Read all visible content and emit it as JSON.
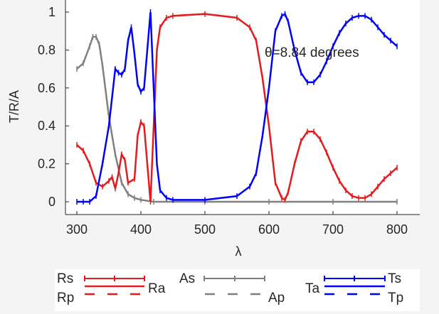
{
  "chart_data": {
    "type": "line",
    "xlabel": "λ",
    "ylabel": "T/R/A",
    "xlim": [
      275,
      830
    ],
    "ylim": [
      -0.06,
      1.06
    ],
    "xticks": [
      300,
      400,
      500,
      600,
      700,
      800
    ],
    "yticks": [
      0,
      0.2,
      0.4,
      0.6,
      0.8,
      1
    ],
    "ytick_labels": [
      "0",
      "0.2",
      "0.4",
      "0.6",
      "0.8",
      "1"
    ],
    "annotation": "θ=8.84 degrees",
    "grid": false,
    "legend_placement": "below",
    "colors": {
      "R": "#e41a1c",
      "A": "#808080",
      "T": "#0000ff"
    },
    "legend": {
      "Rs": "Rs",
      "Rp": "Rp",
      "Ra": "Ra",
      "As": "As",
      "Ap": "Ap",
      "Ts": "Ts",
      "Ta": "Ta",
      "Tp": "Tp"
    },
    "series": [
      {
        "name": "T",
        "color": "#0000ff",
        "x": [
          300,
          310,
          320,
          330,
          340,
          350,
          355,
          360,
          365,
          370,
          375,
          380,
          385,
          390,
          395,
          400,
          405,
          410,
          415,
          420,
          425,
          430,
          440,
          450,
          500,
          550,
          570,
          580,
          590,
          600,
          610,
          620,
          625,
          630,
          640,
          650,
          660,
          670,
          680,
          690,
          700,
          710,
          720,
          730,
          740,
          750,
          760,
          770,
          780,
          790,
          800
        ],
        "y": [
          0,
          0,
          0,
          0.03,
          0.2,
          0.4,
          0.55,
          0.7,
          0.68,
          0.67,
          0.7,
          0.85,
          0.92,
          0.78,
          0.62,
          0.58,
          0.6,
          0.8,
          1.0,
          0.6,
          0.2,
          0.06,
          0.02,
          0.01,
          0.01,
          0.03,
          0.08,
          0.15,
          0.35,
          0.6,
          0.9,
          0.98,
          0.99,
          0.95,
          0.8,
          0.68,
          0.63,
          0.63,
          0.67,
          0.74,
          0.82,
          0.89,
          0.94,
          0.97,
          0.98,
          0.98,
          0.96,
          0.92,
          0.88,
          0.85,
          0.82
        ]
      },
      {
        "name": "R",
        "color": "#e41a1c",
        "x": [
          300,
          310,
          320,
          330,
          340,
          350,
          355,
          360,
          365,
          370,
          375,
          380,
          390,
          395,
          400,
          405,
          410,
          415,
          420,
          425,
          430,
          440,
          450,
          500,
          550,
          570,
          580,
          590,
          600,
          610,
          620,
          625,
          630,
          640,
          650,
          660,
          670,
          680,
          690,
          700,
          710,
          720,
          730,
          740,
          750,
          760,
          770,
          780,
          790,
          800
        ],
        "y": [
          0.3,
          0.27,
          0.2,
          0.1,
          0.08,
          0.11,
          0.13,
          0.07,
          0.15,
          0.25,
          0.22,
          0.1,
          0.12,
          0.35,
          0.42,
          0.4,
          0.2,
          0.0,
          0.4,
          0.8,
          0.92,
          0.97,
          0.98,
          0.99,
          0.97,
          0.92,
          0.85,
          0.65,
          0.4,
          0.1,
          0.02,
          0.01,
          0.05,
          0.2,
          0.32,
          0.37,
          0.37,
          0.33,
          0.26,
          0.18,
          0.11,
          0.06,
          0.03,
          0.02,
          0.02,
          0.04,
          0.08,
          0.12,
          0.15,
          0.18
        ]
      },
      {
        "name": "A",
        "color": "#808080",
        "x": [
          300,
          310,
          320,
          325,
          330,
          335,
          340,
          350,
          360,
          370,
          380,
          390,
          400,
          420,
          500,
          600,
          700,
          800
        ],
        "y": [
          0.7,
          0.73,
          0.82,
          0.87,
          0.87,
          0.83,
          0.72,
          0.45,
          0.25,
          0.1,
          0.04,
          0.02,
          0.01,
          0,
          0,
          0,
          0,
          0
        ]
      }
    ]
  }
}
